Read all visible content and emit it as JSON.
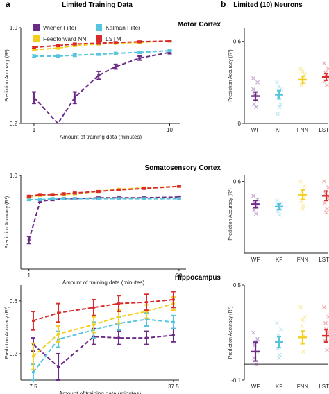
{
  "header": {
    "panel_a_letter": "a",
    "panel_a_title": "Limited Training Data",
    "panel_b_letter": "b",
    "panel_b_title": "Limited (10) Neurons"
  },
  "colors": {
    "Wiener Filter": "#6b2a86",
    "Kalman Filter": "#56c4dd",
    "Feedforward NN": "#f2cf1c",
    "LSTM": "#d92b2b"
  },
  "chart_data": [
    {
      "type": "line",
      "panel": "a",
      "region_title": "Motor Cortex",
      "xlabel": "Amount of training data (minutes)",
      "ylabel": "Prediction Accuracy (R²)",
      "x_scale": "log",
      "y_scale": "log",
      "xlim": [
        0.8,
        12
      ],
      "ylim": [
        0.2,
        1.0
      ],
      "xticks": [
        "1",
        "10"
      ],
      "yticks": [
        "0.2",
        "1.0"
      ],
      "legend": [
        "Wiener Filter",
        "Kalman Filter",
        "Feedforward NN",
        "LSTM"
      ],
      "x": [
        1,
        1.5,
        2,
        3,
        4,
        6,
        10
      ],
      "series": [
        {
          "name": "Wiener Filter",
          "values": [
            0.31,
            0.2,
            0.31,
            0.45,
            0.52,
            0.6,
            0.66
          ],
          "err": [
            0.03,
            0,
            0.03,
            0.03,
            0.02,
            0.02,
            0.015
          ]
        },
        {
          "name": "Kalman Filter",
          "values": [
            0.62,
            0.62,
            0.63,
            0.64,
            0.65,
            0.66,
            0.68
          ],
          "err": [
            0.012,
            0.012,
            0.012,
            0.01,
            0.01,
            0.01,
            0.01
          ]
        },
        {
          "name": "Feedforward NN",
          "values": [
            0.69,
            0.71,
            0.74,
            0.76,
            0.77,
            0.78,
            0.8
          ],
          "err": [
            0.01,
            0.01,
            0.01,
            0.01,
            0.01,
            0.01,
            0.01
          ]
        },
        {
          "name": "LSTM",
          "values": [
            0.72,
            0.74,
            0.76,
            0.77,
            0.78,
            0.79,
            0.8
          ],
          "err": [
            0.01,
            0.01,
            0.01,
            0.01,
            0.01,
            0.01,
            0.01
          ]
        }
      ]
    },
    {
      "type": "scatter",
      "panel": "b",
      "region_title": "Motor Cortex",
      "ylabel": "Prediction Accuracy (R²)",
      "ylim": [
        0,
        0.7
      ],
      "yticks": [
        "0",
        "0.6"
      ],
      "categories": [
        "WF",
        "KF",
        "FNN",
        "LSTM"
      ],
      "means": [
        0.2,
        0.21,
        0.32,
        0.34
      ],
      "err": [
        0.03,
        0.03,
        0.025,
        0.025
      ],
      "points": [
        [
          0.33,
          0.3,
          0.21,
          0.17,
          0.14,
          0.12,
          0.22,
          0.25
        ],
        [
          0.3,
          0.25,
          0.2,
          0.14,
          0.07,
          0.12,
          0.27
        ],
        [
          0.4,
          0.36,
          0.32,
          0.3,
          0.28,
          0.34,
          0.38
        ],
        [
          0.44,
          0.4,
          0.37,
          0.34,
          0.31,
          0.28,
          0.36
        ]
      ]
    },
    {
      "type": "line",
      "panel": "a",
      "region_title": "Somatosensory Cortex",
      "xlabel": "Amount of training data (minutes)",
      "ylabel": "Prediction Accuracy (R²)",
      "x_scale": "log",
      "y_scale": "log",
      "xlim": [
        0.85,
        23
      ],
      "ylim": [
        0.2,
        1.0
      ],
      "xticks": [
        "1",
        "20"
      ],
      "yticks": [
        "1.0"
      ],
      "x": [
        1,
        1.25,
        1.6,
        2,
        2.5,
        4,
        6,
        10,
        20
      ],
      "series": [
        {
          "name": "Wiener Filter",
          "values": [
            0.33,
            0.64,
            0.66,
            0.67,
            0.67,
            0.68,
            0.68,
            0.68,
            0.69
          ],
          "err": [
            0.02,
            0.01,
            0.01,
            0.01,
            0.01,
            0.01,
            0.01,
            0.01,
            0.01
          ]
        },
        {
          "name": "Kalman Filter",
          "values": [
            0.66,
            0.66,
            0.67,
            0.67,
            0.67,
            0.67,
            0.67,
            0.67,
            0.67
          ],
          "err": [
            0.01,
            0.01,
            0.01,
            0.01,
            0.01,
            0.01,
            0.01,
            0.01,
            0.01
          ]
        },
        {
          "name": "Feedforward NN",
          "values": [
            0.69,
            0.71,
            0.72,
            0.72,
            0.73,
            0.76,
            0.79,
            0.81,
            0.83
          ],
          "err": [
            0.01,
            0.01,
            0.01,
            0.01,
            0.01,
            0.01,
            0.01,
            0.01,
            0.01
          ]
        },
        {
          "name": "LSTM",
          "values": [
            0.7,
            0.72,
            0.72,
            0.73,
            0.74,
            0.76,
            0.78,
            0.8,
            0.83
          ],
          "err": [
            0.01,
            0.01,
            0.01,
            0.01,
            0.01,
            0.01,
            0.01,
            0.01,
            0.01
          ]
        }
      ]
    },
    {
      "type": "scatter",
      "panel": "b",
      "region_title": "Somatosensory Cortex",
      "ylabel": "Prediction Accuracy (R²)",
      "ylim": [
        0,
        0.65
      ],
      "yticks": [
        "0.6"
      ],
      "categories": [
        "WF",
        "KF",
        "FNN",
        "LSTM"
      ],
      "means": [
        0.41,
        0.39,
        0.49,
        0.48
      ],
      "err": [
        0.03,
        0.025,
        0.04,
        0.04
      ],
      "points": [
        [
          0.48,
          0.45,
          0.42,
          0.39,
          0.36,
          0.33,
          0.43
        ],
        [
          0.44,
          0.42,
          0.4,
          0.37,
          0.35,
          0.32
        ],
        [
          0.6,
          0.56,
          0.52,
          0.48,
          0.44,
          0.4,
          0.37
        ],
        [
          0.6,
          0.55,
          0.5,
          0.46,
          0.42,
          0.37,
          0.34
        ]
      ]
    },
    {
      "type": "line",
      "panel": "a",
      "region_title": "Hippocampus",
      "xlabel": "Amount of training data (minutes)",
      "ylabel": "Prediction Accuracy (R²)",
      "x_scale": "log",
      "y_scale": "linear",
      "xlim": [
        6.5,
        40
      ],
      "ylim": [
        0.0,
        0.72
      ],
      "xticks": [
        "7.5",
        "37.5"
      ],
      "yticks": [
        "0.2",
        "0.6"
      ],
      "x": [
        7.5,
        10,
        15,
        20,
        27.5,
        37.5
      ],
      "series": [
        {
          "name": "Wiener Filter",
          "values": [
            0.27,
            0.1,
            0.33,
            0.32,
            0.32,
            0.34
          ],
          "err": [
            0.05,
            0.1,
            0.06,
            0.05,
            0.05,
            0.05
          ]
        },
        {
          "name": "Kalman Filter",
          "values": [
            0.06,
            0.31,
            0.38,
            0.43,
            0.46,
            0.44
          ],
          "err": [
            0.06,
            0.06,
            0.06,
            0.05,
            0.05,
            0.05
          ]
        },
        {
          "name": "Feedforward NN",
          "values": [
            0.18,
            0.35,
            0.42,
            0.48,
            0.52,
            0.58
          ],
          "err": [
            0.1,
            0.06,
            0.06,
            0.05,
            0.05,
            0.05
          ]
        },
        {
          "name": "LSTM",
          "values": [
            0.45,
            0.51,
            0.55,
            0.58,
            0.59,
            0.61
          ],
          "err": [
            0.07,
            0.07,
            0.06,
            0.06,
            0.06,
            0.06
          ]
        }
      ]
    },
    {
      "type": "scatter",
      "panel": "b",
      "region_title": "Hippocampus",
      "ylabel": "Prediction Accuracy (R²)",
      "ylim": [
        -0.1,
        0.5
      ],
      "yticks": [
        "-0.1",
        "0.5"
      ],
      "zero_line": true,
      "categories": [
        "WF",
        "KF",
        "FNN",
        "LSTM"
      ],
      "means": [
        0.08,
        0.14,
        0.17,
        0.18
      ],
      "err": [
        0.06,
        0.035,
        0.04,
        0.04
      ],
      "points": [
        [
          0.2,
          0.16,
          0.12,
          0.08,
          0.04,
          0.0,
          0.14
        ],
        [
          0.26,
          0.22,
          0.18,
          0.14,
          0.1,
          0.06,
          0.04
        ],
        [
          0.36,
          0.3,
          0.24,
          0.18,
          0.13,
          0.08,
          0.28
        ],
        [
          0.36,
          0.3,
          0.26,
          0.2,
          0.15,
          0.09,
          0.22
        ]
      ]
    }
  ]
}
